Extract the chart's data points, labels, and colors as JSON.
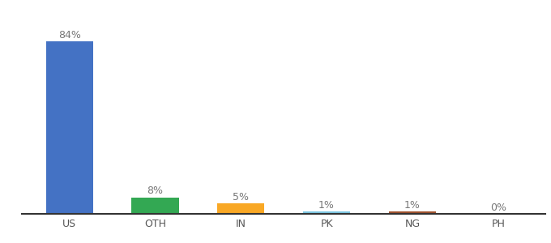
{
  "categories": [
    "US",
    "OTH",
    "IN",
    "PK",
    "NG",
    "PH"
  ],
  "values": [
    84,
    8,
    5,
    1,
    1,
    0
  ],
  "labels": [
    "84%",
    "8%",
    "5%",
    "1%",
    "1%",
    "0%"
  ],
  "bar_colors": [
    "#4472c4",
    "#33a853",
    "#f9a825",
    "#7ec8e3",
    "#a0522d",
    "#d3d3d3"
  ],
  "background_color": "#ffffff",
  "ylim": [
    0,
    96
  ],
  "label_fontsize": 9,
  "tick_fontsize": 9
}
